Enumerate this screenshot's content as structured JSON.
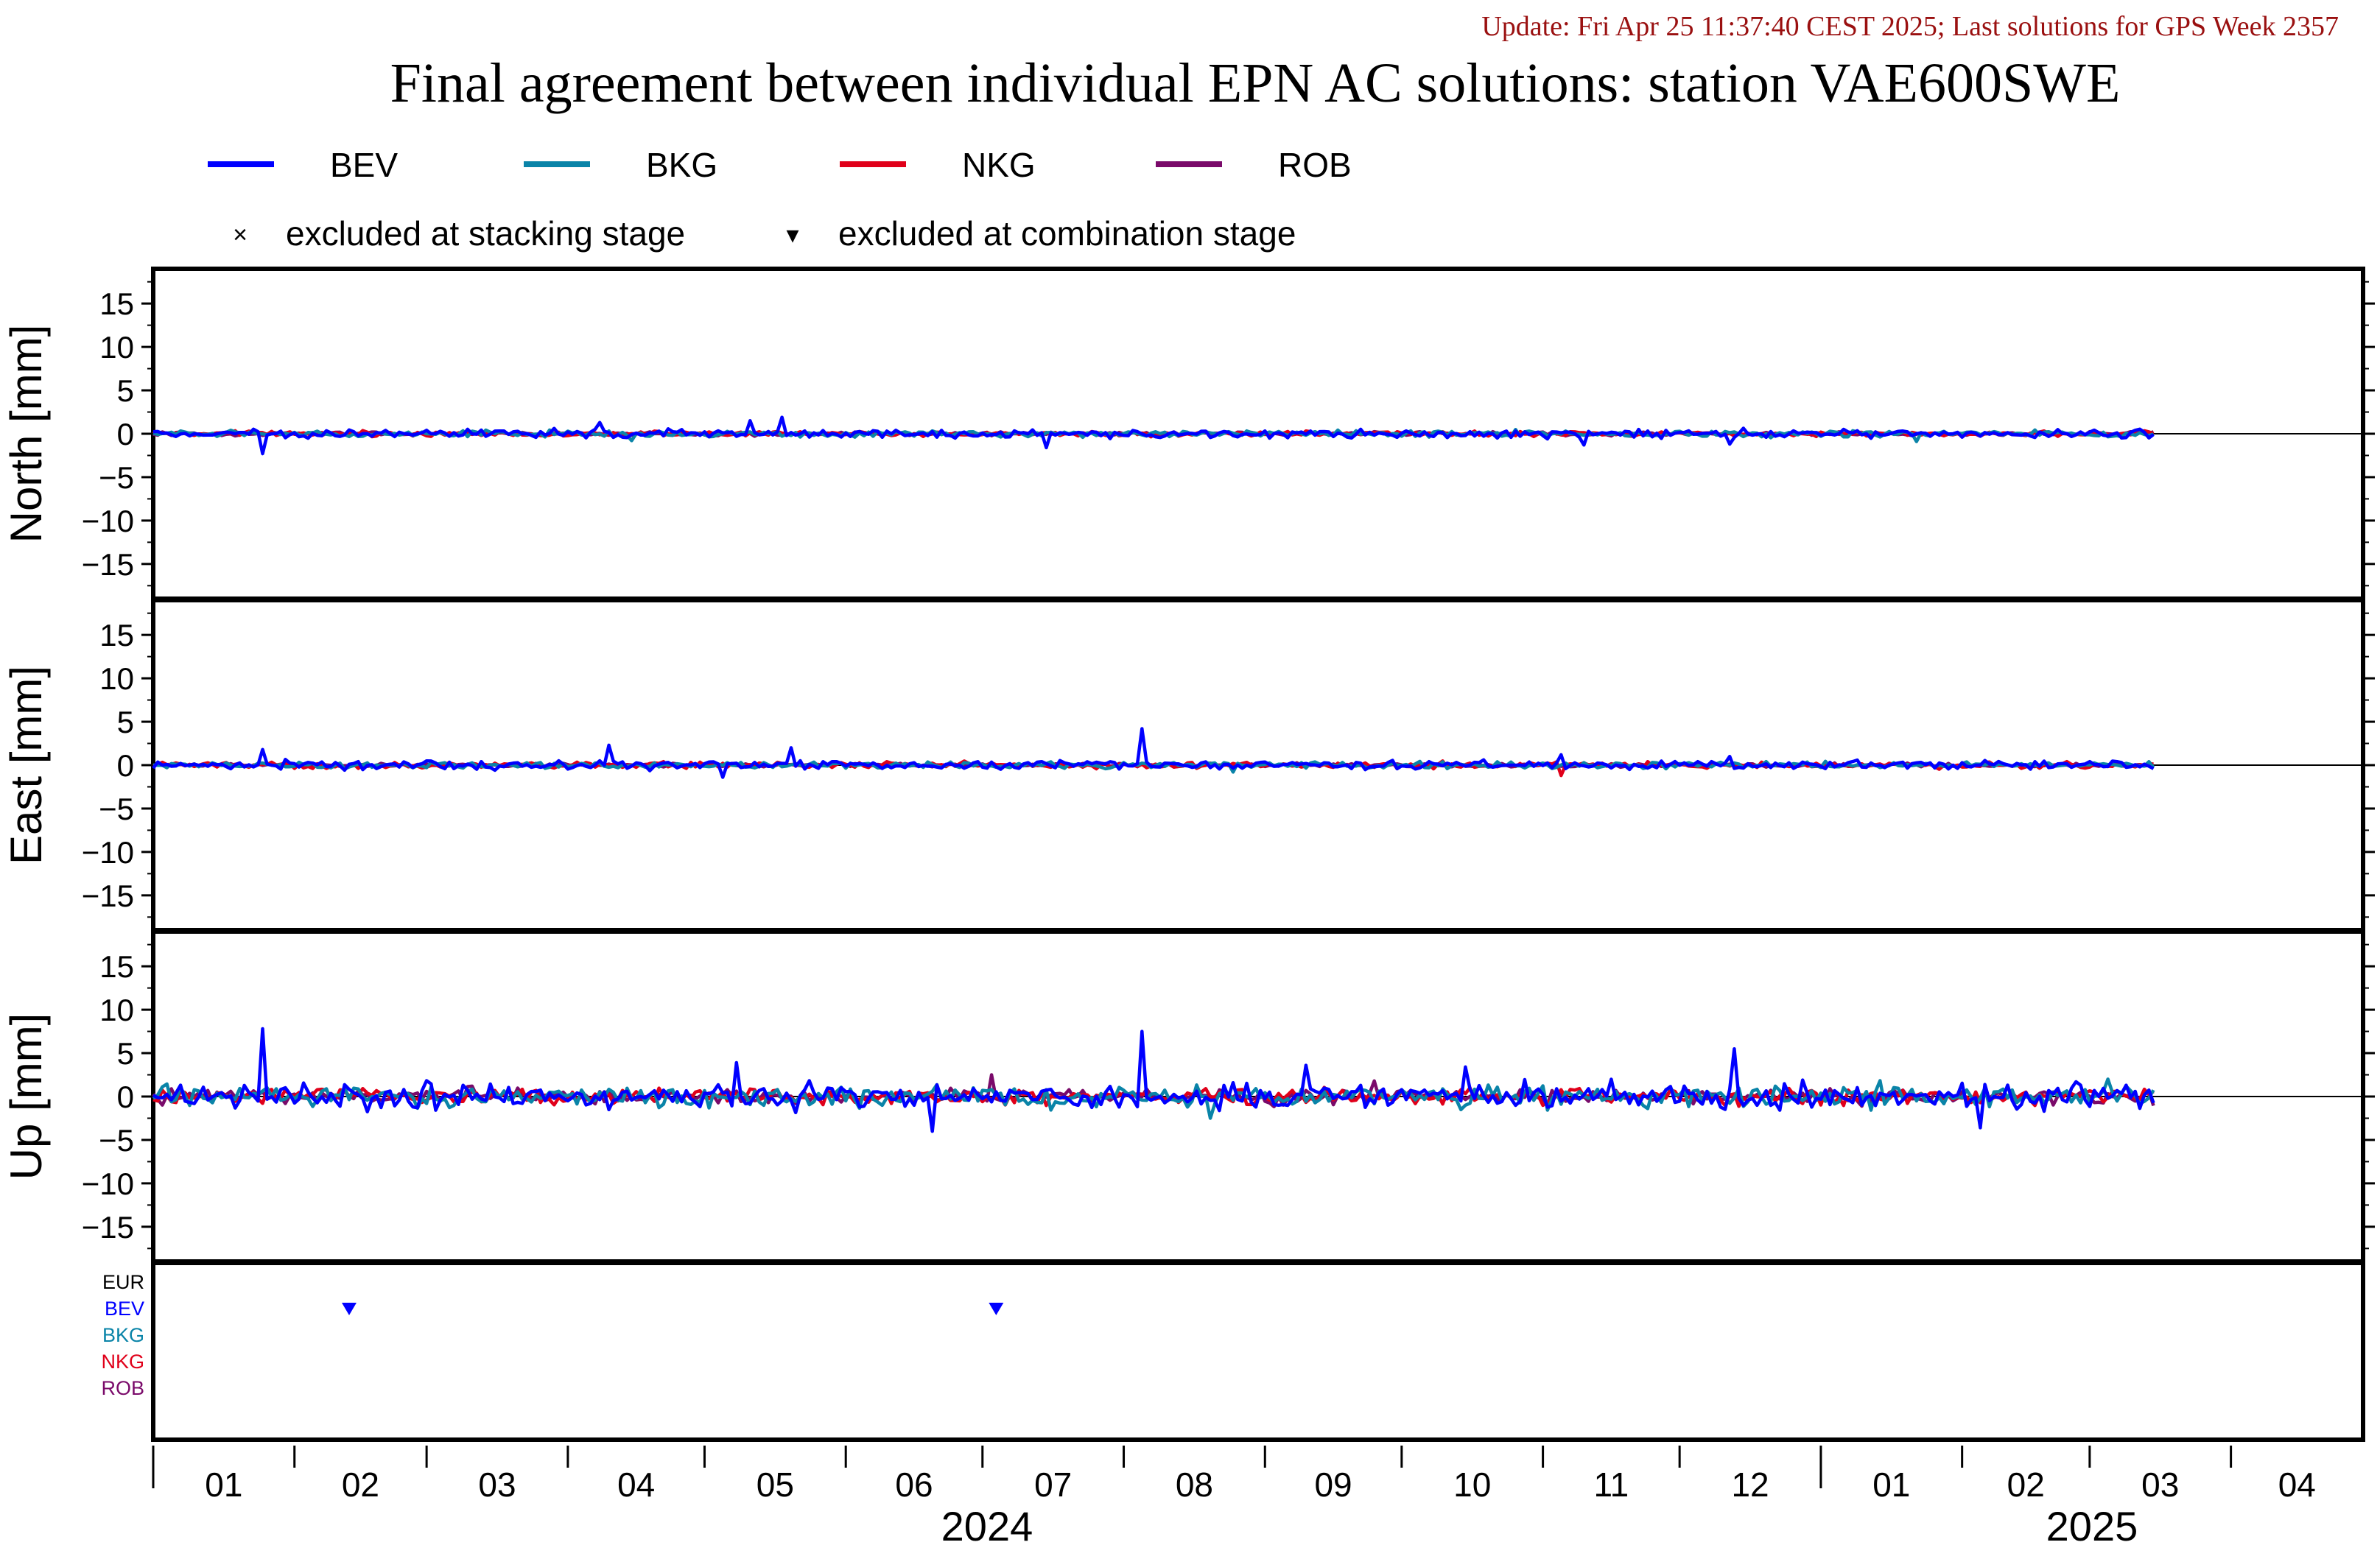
{
  "update_line": "Update: Fri Apr 25 11:37:40 CEST 2025; Last solutions for GPS Week 2357",
  "title": "Final agreement between individual EPN AC solutions: station VAE600SWE",
  "colors": {
    "BEV": "#0000ff",
    "BKG": "#0a84a8",
    "NKG": "#e0001a",
    "ROB": "#7a0a6a",
    "EUR": "#000000",
    "update": "#9a1010"
  },
  "legend": {
    "series": [
      {
        "name": "BEV",
        "color": "#0000ff"
      },
      {
        "name": "BKG",
        "color": "#0a84a8"
      },
      {
        "name": "NKG",
        "color": "#e0001a"
      },
      {
        "name": "ROB",
        "color": "#7a0a6a"
      }
    ],
    "markers": [
      {
        "symbol": "×",
        "label": "excluded at stacking stage"
      },
      {
        "symbol": "▾",
        "label": "excluded at combination stage"
      }
    ]
  },
  "chart_data": {
    "type": "line",
    "x_start": "2024-01-01",
    "x_end": "2025-04-30",
    "last_data_date": "2025-03-15",
    "panels": [
      {
        "name": "north",
        "ylabel": "North [mm]",
        "ylim": [
          -19,
          19
        ],
        "yticks": [
          "15",
          "10",
          "5",
          "0",
          "−5",
          "−10",
          "−15"
        ],
        "series": [
          {
            "name": "BEV",
            "noise": 0.35,
            "spikes": [
              [
                "2024-01-25",
                -2.3
              ],
              [
                "2024-04-08",
                1.3
              ],
              [
                "2024-05-11",
                1.5
              ],
              [
                "2024-05-18",
                1.9
              ],
              [
                "2024-07-15",
                -1.6
              ],
              [
                "2024-11-10",
                -1.3
              ],
              [
                "2024-12-12",
                -1.2
              ]
            ]
          },
          {
            "name": "BKG",
            "noise": 0.25,
            "spikes": [
              [
                "2024-04-15",
                -0.8
              ],
              [
                "2025-01-22",
                -0.9
              ]
            ]
          },
          {
            "name": "NKG",
            "noise": 0.2,
            "spikes": []
          },
          {
            "name": "ROB",
            "noise": 0.15,
            "spikes": []
          }
        ]
      },
      {
        "name": "east",
        "ylabel": "East [mm]",
        "ylim": [
          -19,
          19
        ],
        "yticks": [
          "15",
          "10",
          "5",
          "0",
          "−5",
          "−10",
          "−15"
        ],
        "series": [
          {
            "name": "BEV",
            "noise": 0.35,
            "spikes": [
              [
                "2024-01-25",
                1.8
              ],
              [
                "2024-04-10",
                2.3
              ],
              [
                "2024-05-05",
                -1.4
              ],
              [
                "2024-05-20",
                2.0
              ],
              [
                "2024-08-05",
                4.2
              ],
              [
                "2024-11-05",
                1.2
              ],
              [
                "2024-12-12",
                1.0
              ]
            ]
          },
          {
            "name": "BKG",
            "noise": 0.25,
            "spikes": [
              [
                "2024-08-25",
                -0.8
              ]
            ]
          },
          {
            "name": "NKG",
            "noise": 0.25,
            "spikes": [
              [
                "2024-11-05",
                -1.2
              ]
            ]
          },
          {
            "name": "ROB",
            "noise": 0.15,
            "spikes": []
          }
        ]
      },
      {
        "name": "up",
        "ylabel": "Up [mm]",
        "ylim": [
          -19,
          19
        ],
        "yticks": [
          "15",
          "10",
          "5",
          "0",
          "−5",
          "−10",
          "−15"
        ],
        "series": [
          {
            "name": "BEV",
            "noise": 1.1,
            "spikes": [
              [
                "2024-01-25",
                7.8
              ],
              [
                "2024-05-08",
                3.9
              ],
              [
                "2024-06-20",
                -4.0
              ],
              [
                "2024-08-05",
                7.5
              ],
              [
                "2024-09-10",
                3.6
              ],
              [
                "2024-10-15",
                3.4
              ],
              [
                "2024-12-13",
                5.5
              ],
              [
                "2025-02-05",
                -3.6
              ]
            ]
          },
          {
            "name": "BKG",
            "noise": 0.9,
            "spikes": [
              [
                "2024-08-20",
                -2.5
              ],
              [
                "2025-03-05",
                2.0
              ]
            ]
          },
          {
            "name": "NKG",
            "noise": 0.6,
            "spikes": []
          },
          {
            "name": "ROB",
            "noise": 0.6,
            "spikes": [
              [
                "2024-07-03",
                2.5
              ],
              [
                "2024-09-25",
                1.8
              ]
            ]
          }
        ]
      }
    ],
    "exclusions": {
      "labels": [
        "EUR",
        "BEV",
        "BKG",
        "NKG",
        "ROB"
      ],
      "points": [
        {
          "series": "BEV",
          "date": "2024-02-13",
          "stage": "combination"
        },
        {
          "series": "BEV",
          "date": "2024-07-04",
          "stage": "combination"
        }
      ]
    },
    "x_axis": {
      "month_labels": [
        "01",
        "02",
        "03",
        "04",
        "05",
        "06",
        "07",
        "08",
        "09",
        "10",
        "11",
        "12",
        "01",
        "02",
        "03",
        "04"
      ],
      "year_labels": [
        "2024",
        "2025"
      ]
    }
  }
}
